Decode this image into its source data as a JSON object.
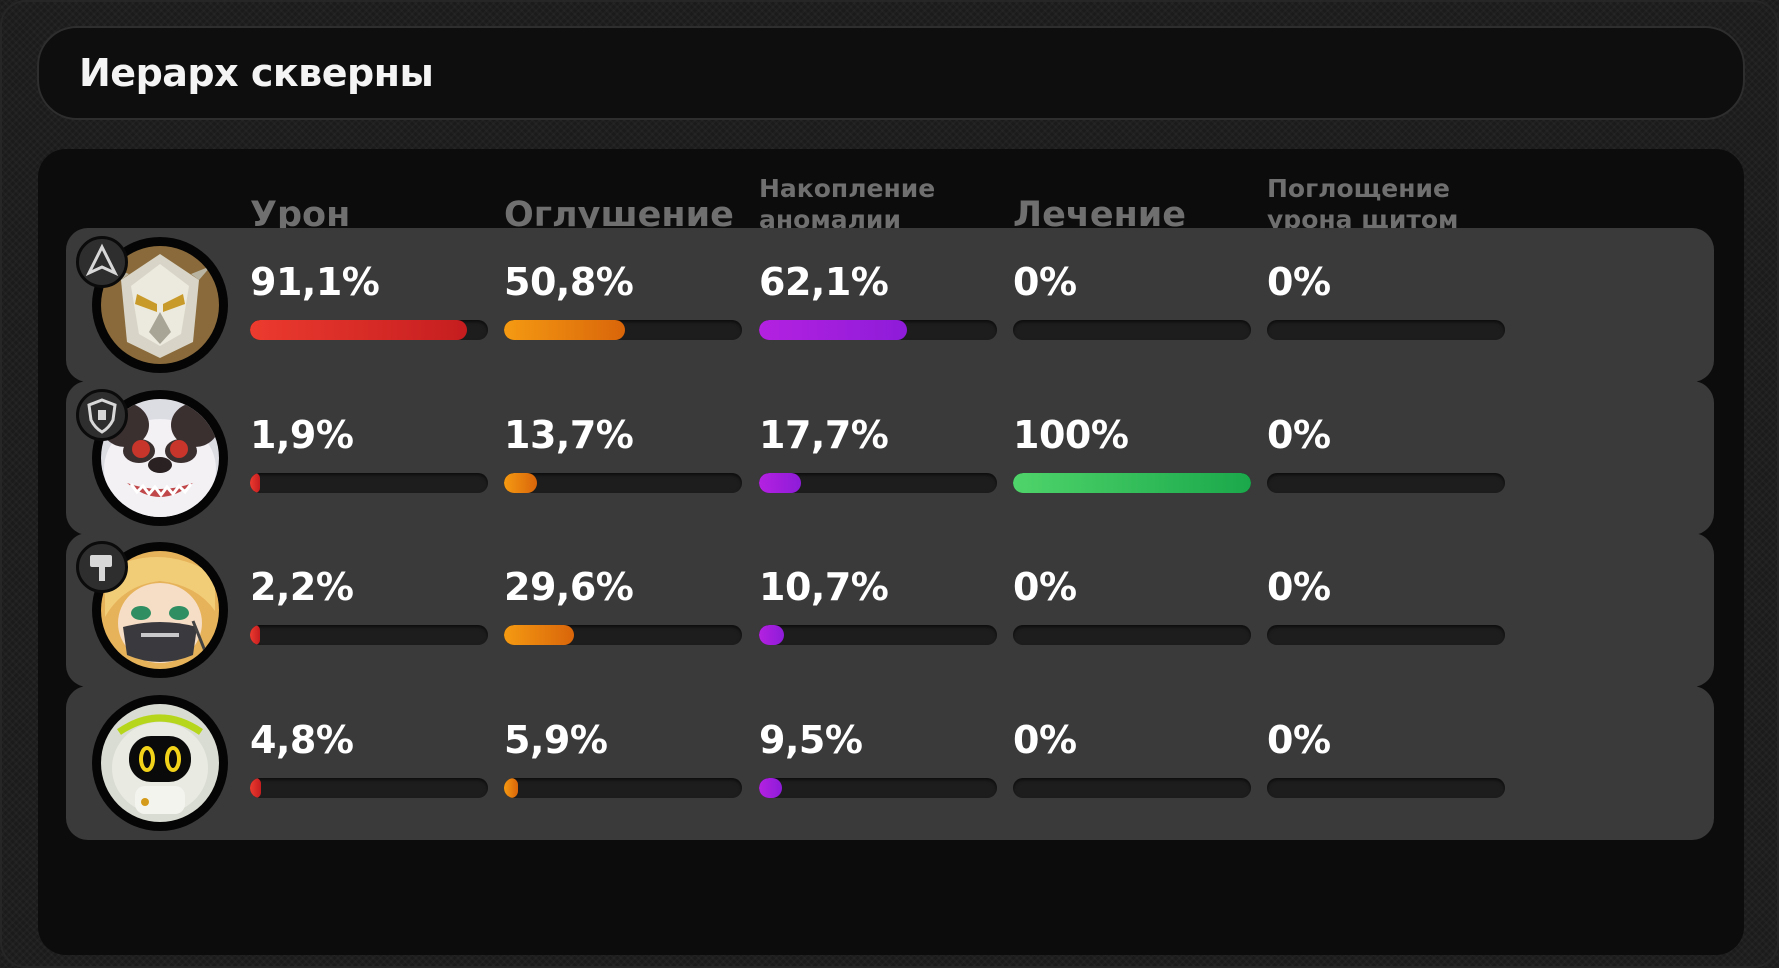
{
  "title": "Иерарх скверны",
  "columns": [
    {
      "label": "Урон",
      "size": "big"
    },
    {
      "label": "Оглушение",
      "size": "big"
    },
    {
      "label": "Накопление\nаномалии",
      "size": "small"
    },
    {
      "label": "Лечение",
      "size": "big"
    },
    {
      "label": "Поглощение\nурона щитом",
      "size": "small"
    }
  ],
  "colors": {
    "damage": [
      "#ec3b2f",
      "#c51d1f"
    ],
    "daze": [
      "#f59a12",
      "#d9650a"
    ],
    "anomaly": [
      "#b421e0",
      "#8d1cd9"
    ],
    "healing": [
      "#4fd46a",
      "#1aa84b"
    ],
    "shield": [
      "#8a8a8a",
      "#6a6a6a"
    ]
  },
  "rows": [
    {
      "avatar": "armored-mech-agent-avatar",
      "role_icon": "attack-role-icon",
      "values": [
        {
          "label": "91,1%",
          "fraction": 0.911
        },
        {
          "label": "50,8%",
          "fraction": 0.508
        },
        {
          "label": "62,1%",
          "fraction": 0.621
        },
        {
          "label": "0%",
          "fraction": 0
        },
        {
          "label": "0%",
          "fraction": 0
        }
      ]
    },
    {
      "avatar": "panda-bear-agent-avatar",
      "role_icon": "defense-role-icon",
      "values": [
        {
          "label": "1,9%",
          "fraction": 0.019
        },
        {
          "label": "13,7%",
          "fraction": 0.137
        },
        {
          "label": "17,7%",
          "fraction": 0.177
        },
        {
          "label": "100%",
          "fraction": 1.0
        },
        {
          "label": "0%",
          "fraction": 0
        }
      ]
    },
    {
      "avatar": "blonde-masked-agent-avatar",
      "role_icon": "stun-role-icon",
      "values": [
        {
          "label": "2,2%",
          "fraction": 0.022
        },
        {
          "label": "29,6%",
          "fraction": 0.296
        },
        {
          "label": "10,7%",
          "fraction": 0.107
        },
        {
          "label": "0%",
          "fraction": 0
        },
        {
          "label": "0%",
          "fraction": 0
        }
      ]
    },
    {
      "avatar": "bangboo-robot-avatar",
      "role_icon": "",
      "values": [
        {
          "label": "4,8%",
          "fraction": 0.048
        },
        {
          "label": "5,9%",
          "fraction": 0.059
        },
        {
          "label": "9,5%",
          "fraction": 0.095
        },
        {
          "label": "0%",
          "fraction": 0
        },
        {
          "label": "0%",
          "fraction": 0
        }
      ]
    }
  ]
}
